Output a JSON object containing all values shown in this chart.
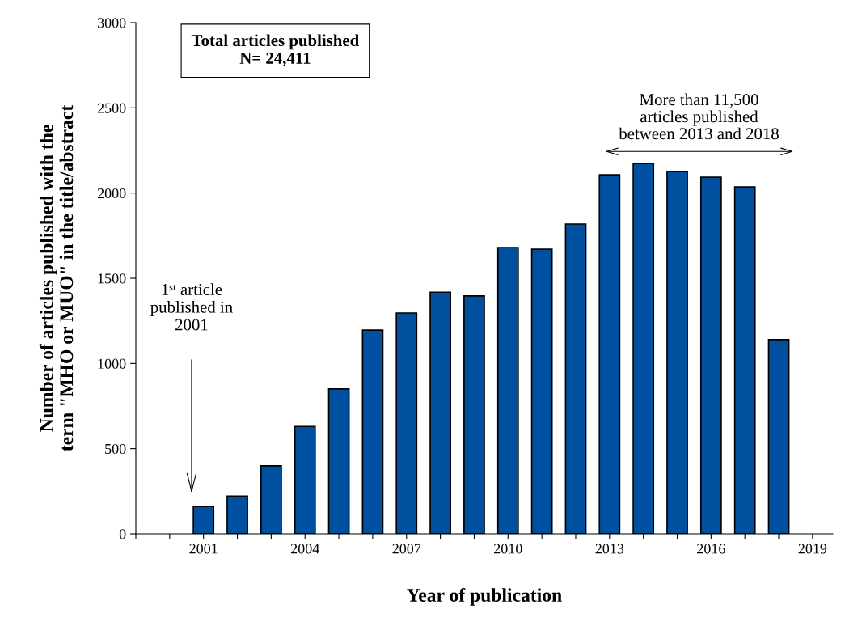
{
  "chart_data": {
    "type": "bar",
    "xlabel": "Year of publication",
    "ylabel": "Number of articles published with the\nterm \"MHO or MUO\" in the title/abstract",
    "x": [
      2001,
      2002,
      2003,
      2004,
      2005,
      2006,
      2007,
      2008,
      2009,
      2010,
      2011,
      2012,
      2013,
      2014,
      2015,
      2016,
      2017,
      2018
    ],
    "values": [
      161,
      222,
      399,
      630,
      850,
      1196,
      1296,
      1418,
      1396,
      1680,
      1670,
      1818,
      2107,
      2173,
      2126,
      2093,
      2036,
      1140
    ],
    "color": "#0050a0",
    "xlim": [
      1999,
      2019.6
    ],
    "xticks": [
      {
        "value": 1999,
        "label": null
      },
      {
        "value": 2000,
        "label": null
      },
      2001,
      {
        "value": 2002,
        "label": null
      },
      {
        "value": 2003,
        "label": null
      },
      2004,
      {
        "value": 2005,
        "label": null
      },
      {
        "value": 2006,
        "label": null
      },
      2007,
      {
        "value": 2008,
        "label": null
      },
      {
        "value": 2009,
        "label": null
      },
      2010,
      {
        "value": 2011,
        "label": null
      },
      {
        "value": 2012,
        "label": null
      },
      2013,
      {
        "value": 2014,
        "label": null
      },
      {
        "value": 2015,
        "label": null
      },
      2016,
      {
        "value": 2017,
        "label": null
      },
      {
        "value": 2018,
        "label": null
      },
      2019
    ],
    "ylim": [
      0,
      3000
    ],
    "yticks": [
      0,
      500,
      1000,
      1500,
      2000,
      2500,
      3000
    ],
    "grid": false,
    "annotations": [
      "Total articles published\nN= 24,411",
      "1ˢᵗ article\npublished in\n2001",
      "More than 11,500\narticles published\nbetween 2013 and 2018"
    ]
  }
}
